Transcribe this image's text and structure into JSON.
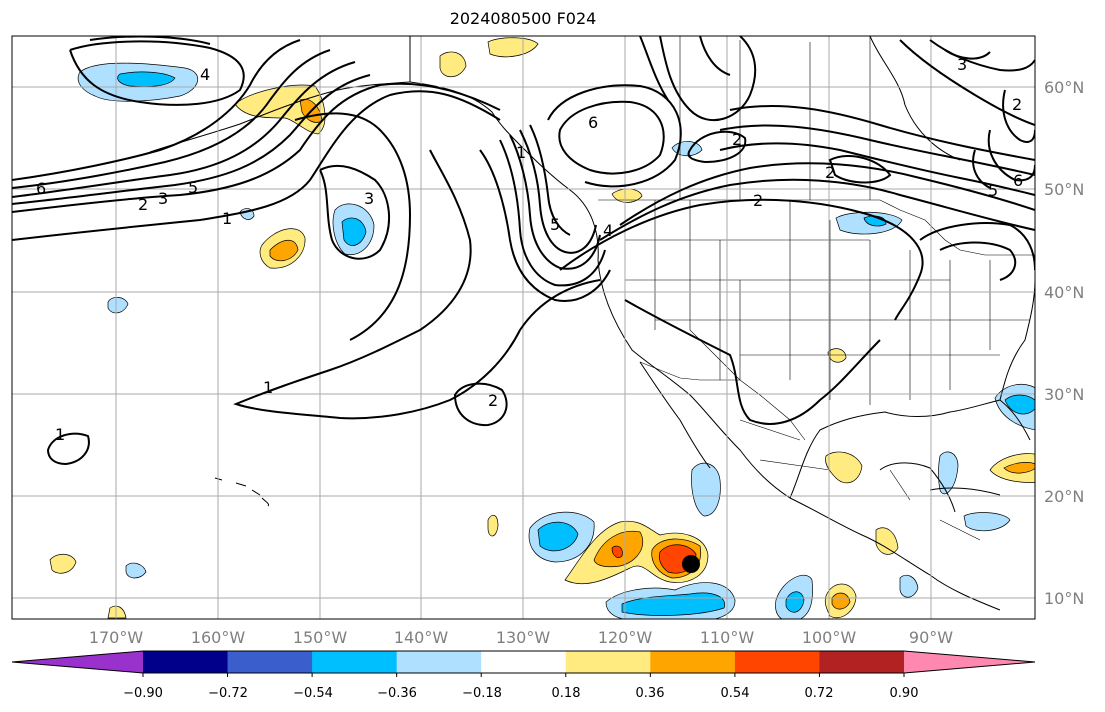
{
  "title": "2024080500 F024",
  "map": {
    "lat_labels": [
      "60°N",
      "50°N",
      "40°N",
      "30°N",
      "20°N",
      "10°N"
    ],
    "lon_labels": [
      "170°W",
      "160°W",
      "150°W",
      "140°W",
      "130°W",
      "120°W",
      "110°W",
      "100°W",
      "90°W"
    ],
    "contour_labels": [
      "1",
      "1",
      "1",
      "2",
      "2",
      "2",
      "2",
      "3",
      "3",
      "4",
      "4",
      "5",
      "5",
      "6",
      "6",
      "3",
      "5",
      "6",
      "2",
      "1",
      "2"
    ],
    "grid_color": "#aaaaaa",
    "coast_color": "#000000"
  },
  "colorbar": {
    "ticks": [
      "−0.90",
      "−0.72",
      "−0.54",
      "−0.36",
      "−0.18",
      "0.18",
      "0.36",
      "0.54",
      "0.72",
      "0.90"
    ],
    "colors": [
      "#9932cc",
      "#00008b",
      "#3a5fcd",
      "#00bfff",
      "#b0e0ff",
      "#ffffff",
      "#ffeb80",
      "#ffa500",
      "#ff4500",
      "#b22222",
      "#ff88b0"
    ]
  },
  "marker": {
    "label": "black dot",
    "color": "#000000"
  }
}
